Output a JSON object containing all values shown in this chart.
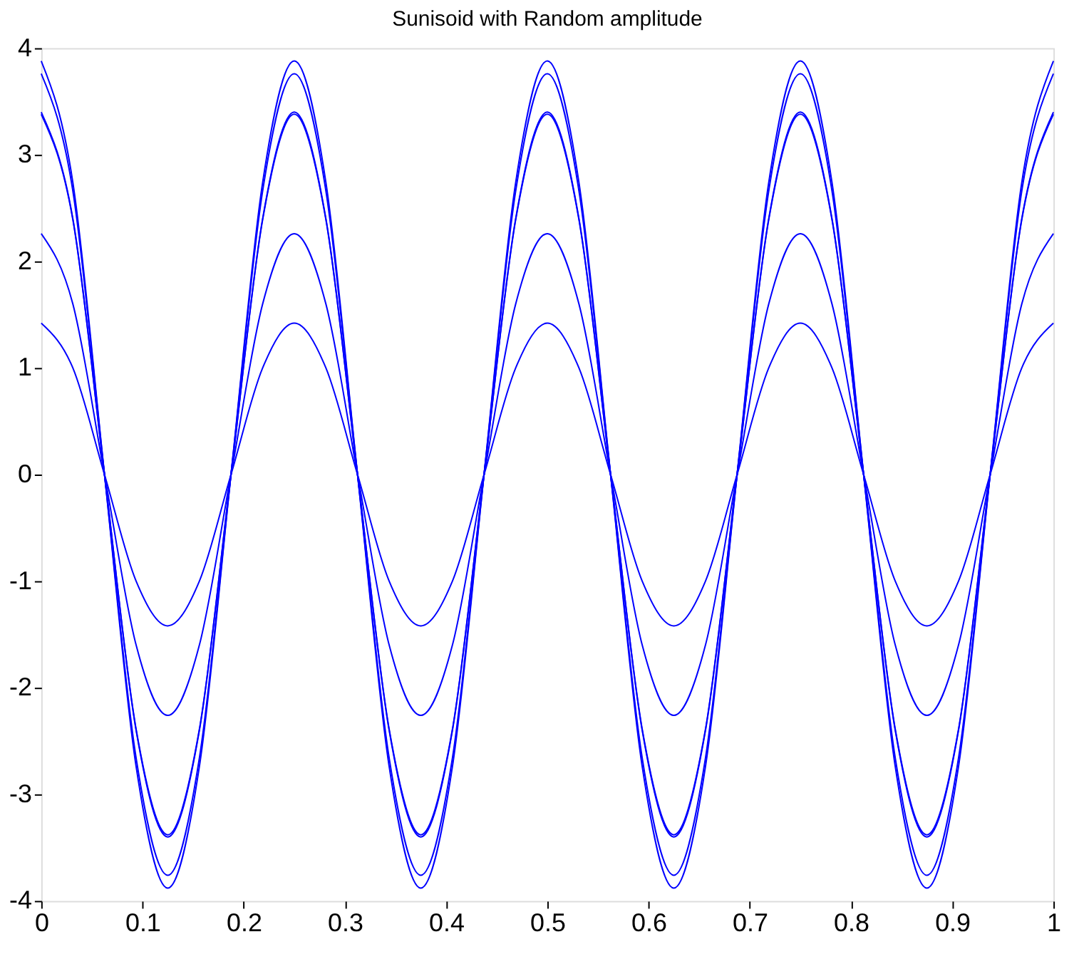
{
  "chart_data": {
    "type": "line",
    "title": "Sunisoid with Random amplitude",
    "x": [
      0,
      0.03125,
      0.0625,
      0.09375,
      0.125,
      0.15625,
      0.1875,
      0.21875,
      0.25,
      0.28125,
      0.3125,
      0.34375,
      0.375,
      0.40625,
      0.4375,
      0.46875,
      0.5,
      0.53125,
      0.5625,
      0.59375,
      0.625,
      0.65625,
      0.6875,
      0.71875,
      0.75,
      0.78125,
      0.8125,
      0.84375,
      0.875,
      0.90625,
      0.9375,
      0.96875,
      1
    ],
    "series": [
      {
        "color": "#0000ff",
        "values": [
          3.88,
          2.74,
          0,
          -2.74,
          -3.88,
          -2.74,
          0,
          2.74,
          3.88,
          2.74,
          0,
          -2.74,
          -3.88,
          -2.74,
          0,
          2.74,
          3.88,
          2.74,
          0,
          -2.74,
          -3.88,
          -2.74,
          0,
          2.74,
          3.88,
          2.74,
          0,
          -2.74,
          -3.88,
          -2.74,
          0,
          2.74,
          3.88
        ]
      },
      {
        "color": "#0000ff",
        "values": [
          3.76,
          2.66,
          0,
          -2.66,
          -3.76,
          -2.66,
          0,
          2.66,
          3.76,
          2.66,
          0,
          -2.66,
          -3.76,
          -2.66,
          0,
          2.66,
          3.76,
          2.66,
          0,
          -2.66,
          -3.76,
          -2.66,
          0,
          2.66,
          3.76,
          2.66,
          0,
          -2.66,
          -3.76,
          -2.66,
          0,
          2.66,
          3.76
        ]
      },
      {
        "color": "#0000ff",
        "values": [
          3.4,
          2.4,
          0,
          -2.4,
          -3.4,
          -2.4,
          0,
          2.4,
          3.4,
          2.4,
          0,
          -2.4,
          -3.4,
          -2.4,
          0,
          2.4,
          3.4,
          2.4,
          0,
          -2.4,
          -3.4,
          -2.4,
          0,
          2.4,
          3.4,
          2.4,
          0,
          -2.4,
          -3.4,
          -2.4,
          0,
          2.4,
          3.4
        ]
      },
      {
        "color": "#0000ff",
        "values": [
          3.38,
          2.39,
          0,
          -2.39,
          -3.38,
          -2.39,
          0,
          2.39,
          3.38,
          2.39,
          0,
          -2.39,
          -3.38,
          -2.39,
          0,
          2.39,
          3.38,
          2.39,
          0,
          -2.39,
          -3.38,
          -2.39,
          0,
          2.39,
          3.38,
          2.39,
          0,
          -2.39,
          -3.38,
          -2.39,
          0,
          2.39,
          3.38
        ]
      },
      {
        "color": "#0000ff",
        "values": [
          2.26,
          1.6,
          0,
          -1.6,
          -2.26,
          -1.6,
          0,
          1.6,
          2.26,
          1.6,
          0,
          -1.6,
          -2.26,
          -1.6,
          0,
          1.6,
          2.26,
          1.6,
          0,
          -1.6,
          -2.26,
          -1.6,
          0,
          1.6,
          2.26,
          1.6,
          0,
          -1.6,
          -2.26,
          -1.6,
          0,
          1.6,
          2.26
        ]
      },
      {
        "color": "#0000ff",
        "values": [
          1.42,
          1.0,
          0,
          -1.0,
          -1.42,
          -1.0,
          0,
          1.0,
          1.42,
          1.0,
          0,
          -1.0,
          -1.42,
          -1.0,
          0,
          1.0,
          1.42,
          1.0,
          0,
          -1.0,
          -1.42,
          -1.0,
          0,
          1.0,
          1.42,
          1.0,
          0,
          -1.0,
          -1.42,
          -1.0,
          0,
          1.0,
          1.42
        ]
      }
    ],
    "xlim": [
      0,
      1
    ],
    "xticks": [
      0,
      0.1,
      0.2,
      0.3,
      0.4,
      0.5,
      0.6,
      0.7,
      0.8,
      0.9,
      1
    ],
    "ylim": [
      -4,
      4
    ],
    "yticks": [
      -4,
      -3,
      -2,
      -1,
      0,
      1,
      2,
      3,
      4
    ],
    "grid": false,
    "legend": false,
    "marker": "none",
    "line_style": "solid"
  }
}
